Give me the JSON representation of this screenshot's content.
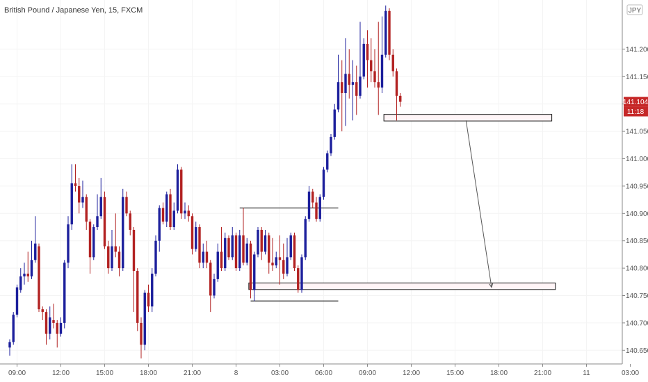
{
  "title": "British Pound / Japanese Yen, 15, FXCM",
  "currency_badge": "JPY",
  "price_label": "141.104",
  "countdown_label": "11:18",
  "colors": {
    "bull": "#1c1f9c",
    "bear": "#b22222",
    "zone_fill": "#fff5f7",
    "zone_border": "#111111",
    "price_badge": "#c62828",
    "text": "#555555"
  },
  "chart_data": {
    "type": "candlestick",
    "symbol": "GBPJPY",
    "timeframe": "15",
    "source": "FXCM",
    "ylim": [
      140.625,
      141.29
    ],
    "y_ticks": [
      140.65,
      140.7,
      140.75,
      140.8,
      140.85,
      140.9,
      140.95,
      141.0,
      141.05,
      141.1,
      141.15,
      141.2
    ],
    "y_tick_labels": [
      "140.650",
      "140.700",
      "140.750",
      "140.800",
      "140.850",
      "140.900",
      "140.950",
      "141.000",
      "141.050",
      "",
      "141.150",
      "141.200"
    ],
    "x_ticks": [
      {
        "label": "09:00",
        "bar": 2
      },
      {
        "label": "12:00",
        "bar": 14
      },
      {
        "label": "15:00",
        "bar": 26
      },
      {
        "label": "18:00",
        "bar": 38
      },
      {
        "label": "21:00",
        "bar": 50
      },
      {
        "label": "8",
        "bar": 62
      },
      {
        "label": "03:00",
        "bar": 74
      },
      {
        "label": "06:00",
        "bar": 86
      },
      {
        "label": "09:00",
        "bar": 98
      },
      {
        "label": "12:00",
        "bar": 110
      },
      {
        "label": "15:00",
        "bar": 122
      },
      {
        "label": "18:00",
        "bar": 134
      },
      {
        "label": "21:00",
        "bar": 146
      },
      {
        "label": "11",
        "bar": 158
      },
      {
        "label": "03:00",
        "bar": 170
      }
    ],
    "candles": [
      [
        140.655,
        140.665,
        140.64,
        140.67
      ],
      [
        140.665,
        140.715,
        140.66,
        140.72
      ],
      [
        140.715,
        140.765,
        140.71,
        140.77
      ],
      [
        140.76,
        140.785,
        140.755,
        140.8
      ],
      [
        140.785,
        140.79,
        140.77,
        140.81
      ],
      [
        140.79,
        140.785,
        140.775,
        140.83
      ],
      [
        140.785,
        140.815,
        140.78,
        140.85
      ],
      [
        140.815,
        140.845,
        140.81,
        140.895
      ],
      [
        140.84,
        140.725,
        140.72,
        140.845
      ],
      [
        140.725,
        140.72,
        140.705,
        140.73
      ],
      [
        140.72,
        140.68,
        140.66,
        140.725
      ],
      [
        140.68,
        140.71,
        140.67,
        140.73
      ],
      [
        140.705,
        140.7,
        140.69,
        140.735
      ],
      [
        140.7,
        140.68,
        140.655,
        140.705
      ],
      [
        140.68,
        140.7,
        140.675,
        140.71
      ],
      [
        140.7,
        140.81,
        140.69,
        140.815
      ],
      [
        140.81,
        140.88,
        140.8,
        140.895
      ],
      [
        140.88,
        140.955,
        140.87,
        140.99
      ],
      [
        140.955,
        140.95,
        140.94,
        140.99
      ],
      [
        140.95,
        140.92,
        140.9,
        140.965
      ],
      [
        140.92,
        140.93,
        140.91,
        140.96
      ],
      [
        140.93,
        140.885,
        140.87,
        140.935
      ],
      [
        140.885,
        140.82,
        140.79,
        140.89
      ],
      [
        140.82,
        140.875,
        140.815,
        140.88
      ],
      [
        140.875,
        140.895,
        140.87,
        140.935
      ],
      [
        140.895,
        140.93,
        140.89,
        140.965
      ],
      [
        140.93,
        140.84,
        140.835,
        140.94
      ],
      [
        140.84,
        140.8,
        140.79,
        140.85
      ],
      [
        140.8,
        140.84,
        140.795,
        140.87
      ],
      [
        140.84,
        140.83,
        140.82,
        140.9
      ],
      [
        140.83,
        140.8,
        140.785,
        140.84
      ],
      [
        140.8,
        140.93,
        140.795,
        140.945
      ],
      [
        140.93,
        140.9,
        140.895,
        140.94
      ],
      [
        140.9,
        140.87,
        140.86,
        140.905
      ],
      [
        140.87,
        140.795,
        140.72,
        140.875
      ],
      [
        140.795,
        140.7,
        140.685,
        140.8
      ],
      [
        140.7,
        140.66,
        140.635,
        140.71
      ],
      [
        140.66,
        140.755,
        140.65,
        140.76
      ],
      [
        140.755,
        140.73,
        140.72,
        140.77
      ],
      [
        140.73,
        140.79,
        140.72,
        140.8
      ],
      [
        140.79,
        140.85,
        140.785,
        140.86
      ],
      [
        140.85,
        140.91,
        140.83,
        140.915
      ],
      [
        140.91,
        140.885,
        140.88,
        140.92
      ],
      [
        140.885,
        140.935,
        140.875,
        140.94
      ],
      [
        140.935,
        140.875,
        140.87,
        140.945
      ],
      [
        140.875,
        140.905,
        140.87,
        140.92
      ],
      [
        140.905,
        140.98,
        140.9,
        140.99
      ],
      [
        140.98,
        140.9,
        140.89,
        140.985
      ],
      [
        140.9,
        140.905,
        140.89,
        140.92
      ],
      [
        140.905,
        140.895,
        140.885,
        140.915
      ],
      [
        140.895,
        140.835,
        140.825,
        140.9
      ],
      [
        140.835,
        140.875,
        140.83,
        140.885
      ],
      [
        140.875,
        140.81,
        140.8,
        140.88
      ],
      [
        140.81,
        140.83,
        140.8,
        140.845
      ],
      [
        140.83,
        140.81,
        140.8,
        140.85
      ],
      [
        140.81,
        140.75,
        140.72,
        140.815
      ],
      [
        140.75,
        140.78,
        140.745,
        140.79
      ],
      [
        140.78,
        140.83,
        140.775,
        140.845
      ],
      [
        140.83,
        140.8,
        140.795,
        140.875
      ],
      [
        140.8,
        140.855,
        140.795,
        140.865
      ],
      [
        140.855,
        140.82,
        140.815,
        140.86
      ],
      [
        140.82,
        140.86,
        140.815,
        140.875
      ],
      [
        140.86,
        140.8,
        140.795,
        140.865
      ],
      [
        140.8,
        140.86,
        140.795,
        140.87
      ],
      [
        140.86,
        140.81,
        140.805,
        140.91
      ],
      [
        140.81,
        140.845,
        140.805,
        140.855
      ],
      [
        140.845,
        140.76,
        140.745,
        140.85
      ],
      [
        140.76,
        140.825,
        140.74,
        140.83
      ],
      [
        140.825,
        140.87,
        140.82,
        140.875
      ],
      [
        140.87,
        140.83,
        140.815,
        140.875
      ],
      [
        140.83,
        140.86,
        140.825,
        140.87
      ],
      [
        140.86,
        140.81,
        140.79,
        140.865
      ],
      [
        140.81,
        140.805,
        140.795,
        140.855
      ],
      [
        140.805,
        140.82,
        140.8,
        140.83
      ],
      [
        140.82,
        140.815,
        140.77,
        140.86
      ],
      [
        140.815,
        140.79,
        140.78,
        140.845
      ],
      [
        140.79,
        140.82,
        140.785,
        140.855
      ],
      [
        140.82,
        140.86,
        140.815,
        140.865
      ],
      [
        140.86,
        140.8,
        140.795,
        140.865
      ],
      [
        140.8,
        140.76,
        140.755,
        140.805
      ],
      [
        140.76,
        140.82,
        140.755,
        140.825
      ],
      [
        140.82,
        140.89,
        140.815,
        140.895
      ],
      [
        140.89,
        140.94,
        140.885,
        140.95
      ],
      [
        140.94,
        140.92,
        140.91,
        140.945
      ],
      [
        140.92,
        140.89,
        140.885,
        140.93
      ],
      [
        140.89,
        140.93,
        140.885,
        140.935
      ],
      [
        140.93,
        140.98,
        140.925,
        140.985
      ],
      [
        140.98,
        141.01,
        140.975,
        141.015
      ],
      [
        141.01,
        141.04,
        141.005,
        141.045
      ],
      [
        141.04,
        141.09,
        141.035,
        141.1
      ],
      [
        141.09,
        141.14,
        141.085,
        141.19
      ],
      [
        141.14,
        141.12,
        141.05,
        141.18
      ],
      [
        141.12,
        141.155,
        141.06,
        141.22
      ],
      [
        141.155,
        141.135,
        141.11,
        141.2
      ],
      [
        141.135,
        141.14,
        141.07,
        141.18
      ],
      [
        141.14,
        141.115,
        141.08,
        141.17
      ],
      [
        141.115,
        141.15,
        141.11,
        141.25
      ],
      [
        141.15,
        141.21,
        141.145,
        141.22
      ],
      [
        141.21,
        141.18,
        141.13,
        141.235
      ],
      [
        141.18,
        141.16,
        141.14,
        141.22
      ],
      [
        141.16,
        141.14,
        141.13,
        141.2
      ],
      [
        141.14,
        141.13,
        141.08,
        141.25
      ],
      [
        141.13,
        141.19,
        141.12,
        141.26
      ],
      [
        141.19,
        141.27,
        141.185,
        141.28
      ],
      [
        141.27,
        141.19,
        141.18,
        141.275
      ],
      [
        141.19,
        141.16,
        141.15,
        141.2
      ],
      [
        141.16,
        141.115,
        141.07,
        141.165
      ],
      [
        141.115,
        141.104,
        141.095,
        141.12
      ]
    ],
    "zones": [
      {
        "price_top": 141.081,
        "price_bottom": 141.069,
        "bar_start": 102.5,
        "bar_end": 148.5
      },
      {
        "price_top": 140.773,
        "price_bottom": 140.761,
        "bar_start": 65.5,
        "bar_end": 149.5
      }
    ],
    "levels": [
      {
        "price": 140.91,
        "bar_start": 63,
        "bar_end": 90
      },
      {
        "price": 140.74,
        "bar_start": 66,
        "bar_end": 90
      }
    ],
    "arrow": {
      "from_bar": 125,
      "from_price": 141.07,
      "to_bar": 132,
      "to_price": 140.765
    },
    "last_price": 141.104
  }
}
